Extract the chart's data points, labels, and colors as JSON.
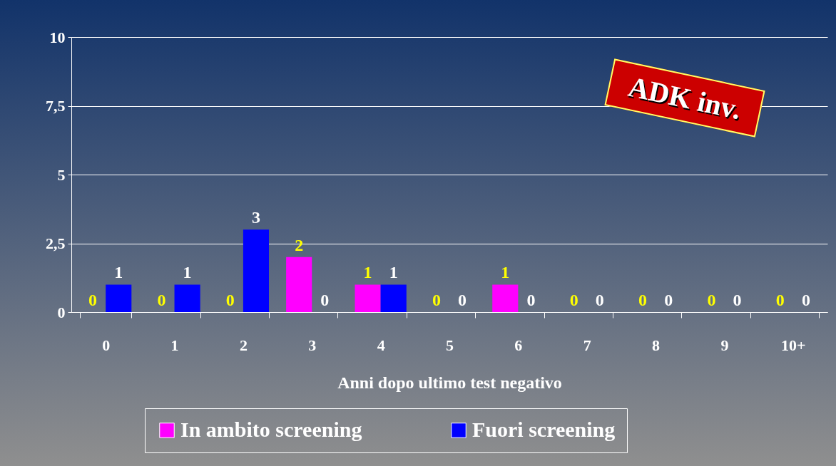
{
  "chart_data": {
    "type": "bar",
    "xlabel": "Anni dopo ultimo test negativo",
    "categories": [
      "0",
      "1",
      "2",
      "3",
      "4",
      "5",
      "6",
      "7",
      "8",
      "9",
      "10+"
    ],
    "series": [
      {
        "name": "In ambito screening",
        "color": "#ff00ff",
        "values": [
          0,
          0,
          0,
          2,
          1,
          0,
          1,
          0,
          0,
          0,
          0
        ]
      },
      {
        "name": "Fuori screening",
        "color": "#0000ff",
        "values": [
          1,
          1,
          3,
          0,
          1,
          0,
          0,
          0,
          0,
          0,
          0
        ]
      }
    ],
    "ylim": [
      0,
      10
    ],
    "yticks": [
      0,
      {
        "value": 2.5,
        "label": "2,5"
      },
      5,
      {
        "value": 7.5,
        "label": "7,5"
      },
      10
    ],
    "grid": "y",
    "legend": "bottom",
    "data_labels": true,
    "annotations": [
      "ADK inv."
    ]
  }
}
